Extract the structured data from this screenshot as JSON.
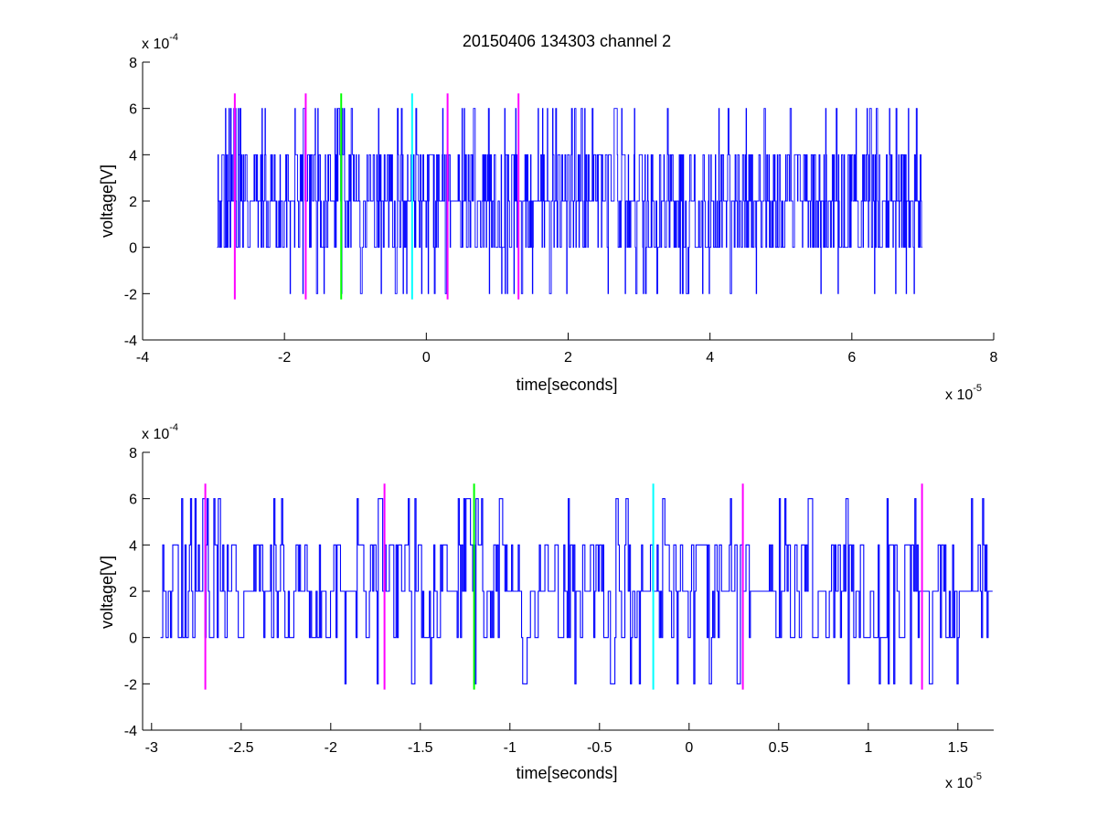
{
  "chart_data": [
    {
      "type": "line",
      "title": "20150406 134303 channel 2",
      "xlabel": "time[seconds]",
      "ylabel": "voltage[V]",
      "x_multiplier_label": {
        "base": "x 10",
        "exp": "-5"
      },
      "y_multiplier_label": {
        "base": "x 10",
        "exp": "-4"
      },
      "xlim": [
        -4,
        8
      ],
      "ylim": [
        -4,
        8
      ],
      "x_ticks": [
        -4,
        -2,
        0,
        2,
        4,
        6,
        8
      ],
      "x_tick_labels": [
        "-4",
        "-2",
        "0",
        "2",
        "4",
        "6",
        "8"
      ],
      "y_ticks": [
        -4,
        -2,
        0,
        2,
        4,
        6,
        8
      ],
      "y_tick_labels": [
        "-4",
        "-2",
        "0",
        "2",
        "4",
        "6",
        "8"
      ],
      "grid": false,
      "signal": {
        "color": "#0000ff",
        "x_start": -2.95,
        "x_end": 7.0,
        "levels": [
          -2,
          0,
          2,
          4,
          6
        ],
        "baseline": 2
      },
      "markers": [
        {
          "x": -2.7,
          "color": "#ff00ff",
          "y_range": [
            -2.25,
            6.65
          ]
        },
        {
          "x": -1.7,
          "color": "#ff00ff",
          "y_range": [
            -2.25,
            6.65
          ]
        },
        {
          "x": -1.2,
          "color": "#00ff00",
          "y_range": [
            -2.25,
            6.65
          ]
        },
        {
          "x": -0.2,
          "color": "#00ffff",
          "y_range": [
            -2.25,
            6.65
          ]
        },
        {
          "x": 0.3,
          "color": "#ff00ff",
          "y_range": [
            -2.25,
            6.65
          ]
        },
        {
          "x": 1.3,
          "color": "#ff00ff",
          "y_range": [
            -2.25,
            6.65
          ]
        }
      ]
    },
    {
      "type": "line",
      "title": "",
      "xlabel": "time[seconds]",
      "ylabel": "voltage[V]",
      "x_multiplier_label": {
        "base": "x 10",
        "exp": "-5"
      },
      "y_multiplier_label": {
        "base": "x 10",
        "exp": "-4"
      },
      "xlim": [
        -3.05,
        1.7
      ],
      "ylim": [
        -4,
        8
      ],
      "x_ticks": [
        -3,
        -2.5,
        -2,
        -1.5,
        -1,
        -0.5,
        0,
        0.5,
        1,
        1.5
      ],
      "x_tick_labels": [
        "-3",
        "-2.5",
        "-2",
        "-1.5",
        "-1",
        "-0.5",
        "0",
        "0.5",
        "1",
        "1.5"
      ],
      "y_ticks": [
        -4,
        -2,
        0,
        2,
        4,
        6,
        8
      ],
      "y_tick_labels": [
        "-4",
        "-2",
        "0",
        "2",
        "4",
        "6",
        "8"
      ],
      "grid": false,
      "signal": {
        "color": "#0000ff",
        "x_start": -2.95,
        "x_end": 1.7,
        "levels": [
          -2,
          0,
          2,
          4,
          6
        ],
        "baseline": 2
      },
      "markers": [
        {
          "x": -2.7,
          "color": "#ff00ff",
          "y_range": [
            -2.25,
            6.65
          ]
        },
        {
          "x": -1.7,
          "color": "#ff00ff",
          "y_range": [
            -2.25,
            6.65
          ]
        },
        {
          "x": -1.2,
          "color": "#00ff00",
          "y_range": [
            -2.25,
            6.65
          ]
        },
        {
          "x": -0.2,
          "color": "#00ffff",
          "y_range": [
            -2.25,
            6.65
          ]
        },
        {
          "x": 0.3,
          "color": "#ff00ff",
          "y_range": [
            -2.25,
            6.65
          ]
        },
        {
          "x": 1.3,
          "color": "#ff00ff",
          "y_range": [
            -2.25,
            6.65
          ]
        }
      ]
    }
  ]
}
